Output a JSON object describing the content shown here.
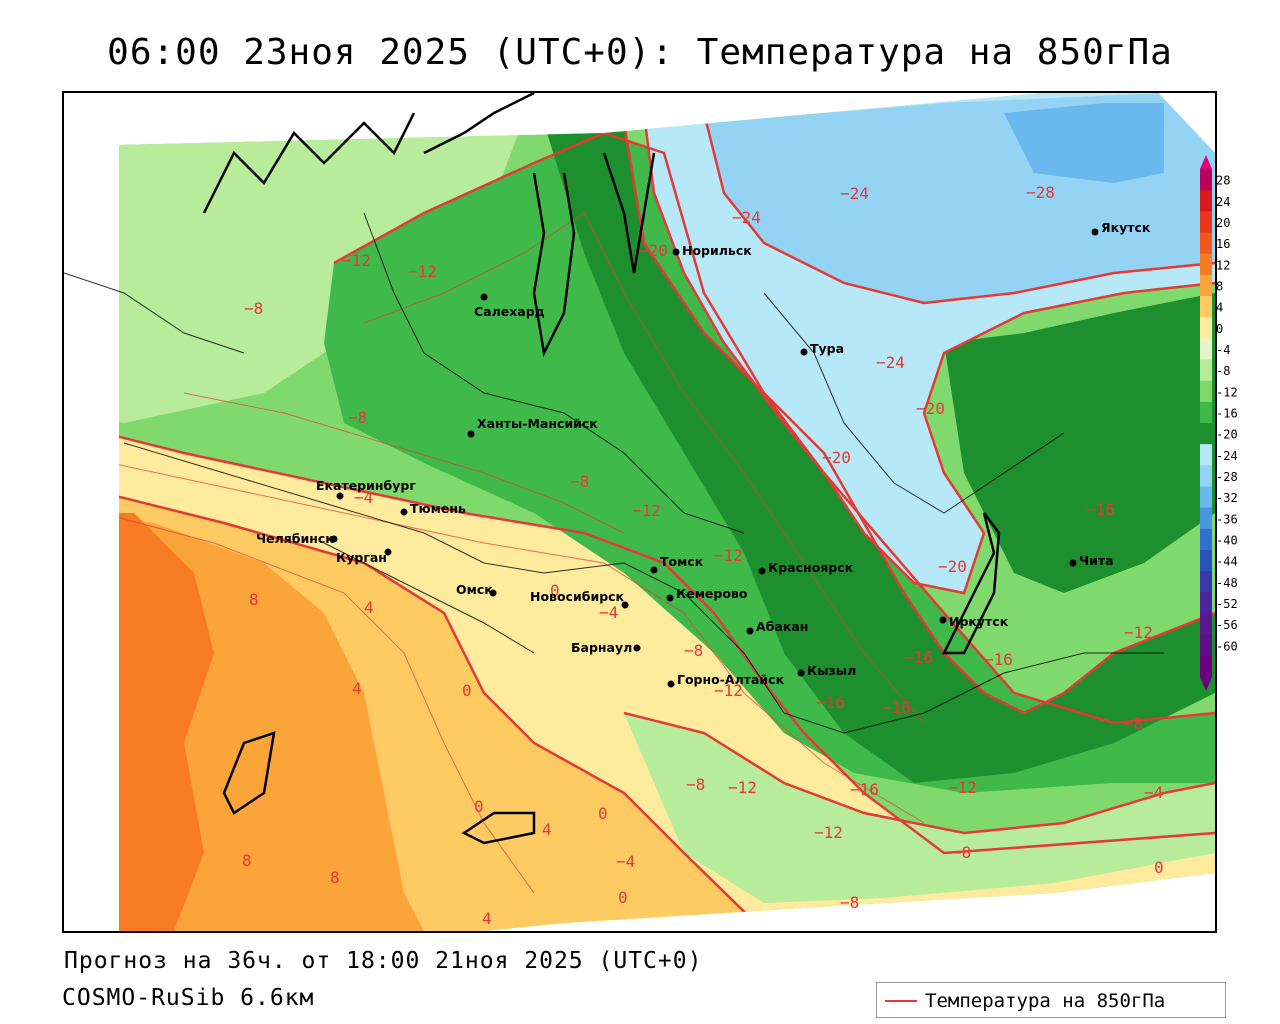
{
  "title": "06:00 23ноя 2025 (UTC+0): Температура на 850гПа",
  "footer": {
    "forecast": "Прогноз на 36ч. от 18:00 21ноя 2025 (UTC+0)",
    "model": "COSMO-RuSib 6.6км"
  },
  "legend": {
    "label": "Температура на 850гПа",
    "line_color": "#e53935"
  },
  "colorbar": {
    "ticks": [
      "28",
      "24",
      "20",
      "16",
      "12",
      "8",
      "4",
      "0",
      "-4",
      "-8",
      "-12",
      "-16",
      "-20",
      "-24",
      "-28",
      "-32",
      "-36",
      "-40",
      "-44",
      "-48",
      "-52",
      "-56",
      "-60"
    ],
    "colors": [
      "#b8005a",
      "#d7191c",
      "#e8351c",
      "#f2581c",
      "#f77b22",
      "#fba43a",
      "#fdcb62",
      "#feeb9e",
      "#e6f5c7",
      "#b7ec9a",
      "#7fd96c",
      "#3fb94a",
      "#1e8f2e",
      "#b7e8f7",
      "#95d3f5",
      "#6bb8ee",
      "#4a96e0",
      "#3070cf",
      "#2a52bb",
      "#3b36a9",
      "#4b2599",
      "#561a8c",
      "#5e0f82",
      "#6a0080"
    ]
  },
  "cities": [
    {
      "name": "Норильск"
    },
    {
      "name": "Якутск"
    },
    {
      "name": "Салехард"
    },
    {
      "name": "Тура"
    },
    {
      "name": "Ханты-Мансийск"
    },
    {
      "name": "Екатеринбург"
    },
    {
      "name": "Тюмень"
    },
    {
      "name": "Челябинск"
    },
    {
      "name": "Курган"
    },
    {
      "name": "Томск"
    },
    {
      "name": "Красноярск"
    },
    {
      "name": "Омск"
    },
    {
      "name": "Новосибирск"
    },
    {
      "name": "Кемерово"
    },
    {
      "name": "Абакан"
    },
    {
      "name": "Иркутск"
    },
    {
      "name": "Барнаул"
    },
    {
      "name": "Кызыл"
    },
    {
      "name": "Горно-Алтайск"
    },
    {
      "name": "Чита"
    }
  ],
  "contour_labels": [
    "-12",
    "-12",
    "-8",
    "-8",
    "-4",
    "-8",
    "-12",
    "-12",
    "-20",
    "-24",
    "-24",
    "-28",
    "-24",
    "-20",
    "-20",
    "-20",
    "-16",
    "-16",
    "-16",
    "-16",
    "-16",
    "-12",
    "-12",
    "-12",
    "-8",
    "-12",
    "-16",
    "-12",
    "-12",
    "-8",
    "-8",
    "-4",
    "0",
    "-8",
    "-8",
    "-4",
    "8",
    "4",
    "4",
    "0",
    "0",
    "4",
    "0",
    "-4",
    "0",
    "8",
    "8",
    "4"
  ]
}
